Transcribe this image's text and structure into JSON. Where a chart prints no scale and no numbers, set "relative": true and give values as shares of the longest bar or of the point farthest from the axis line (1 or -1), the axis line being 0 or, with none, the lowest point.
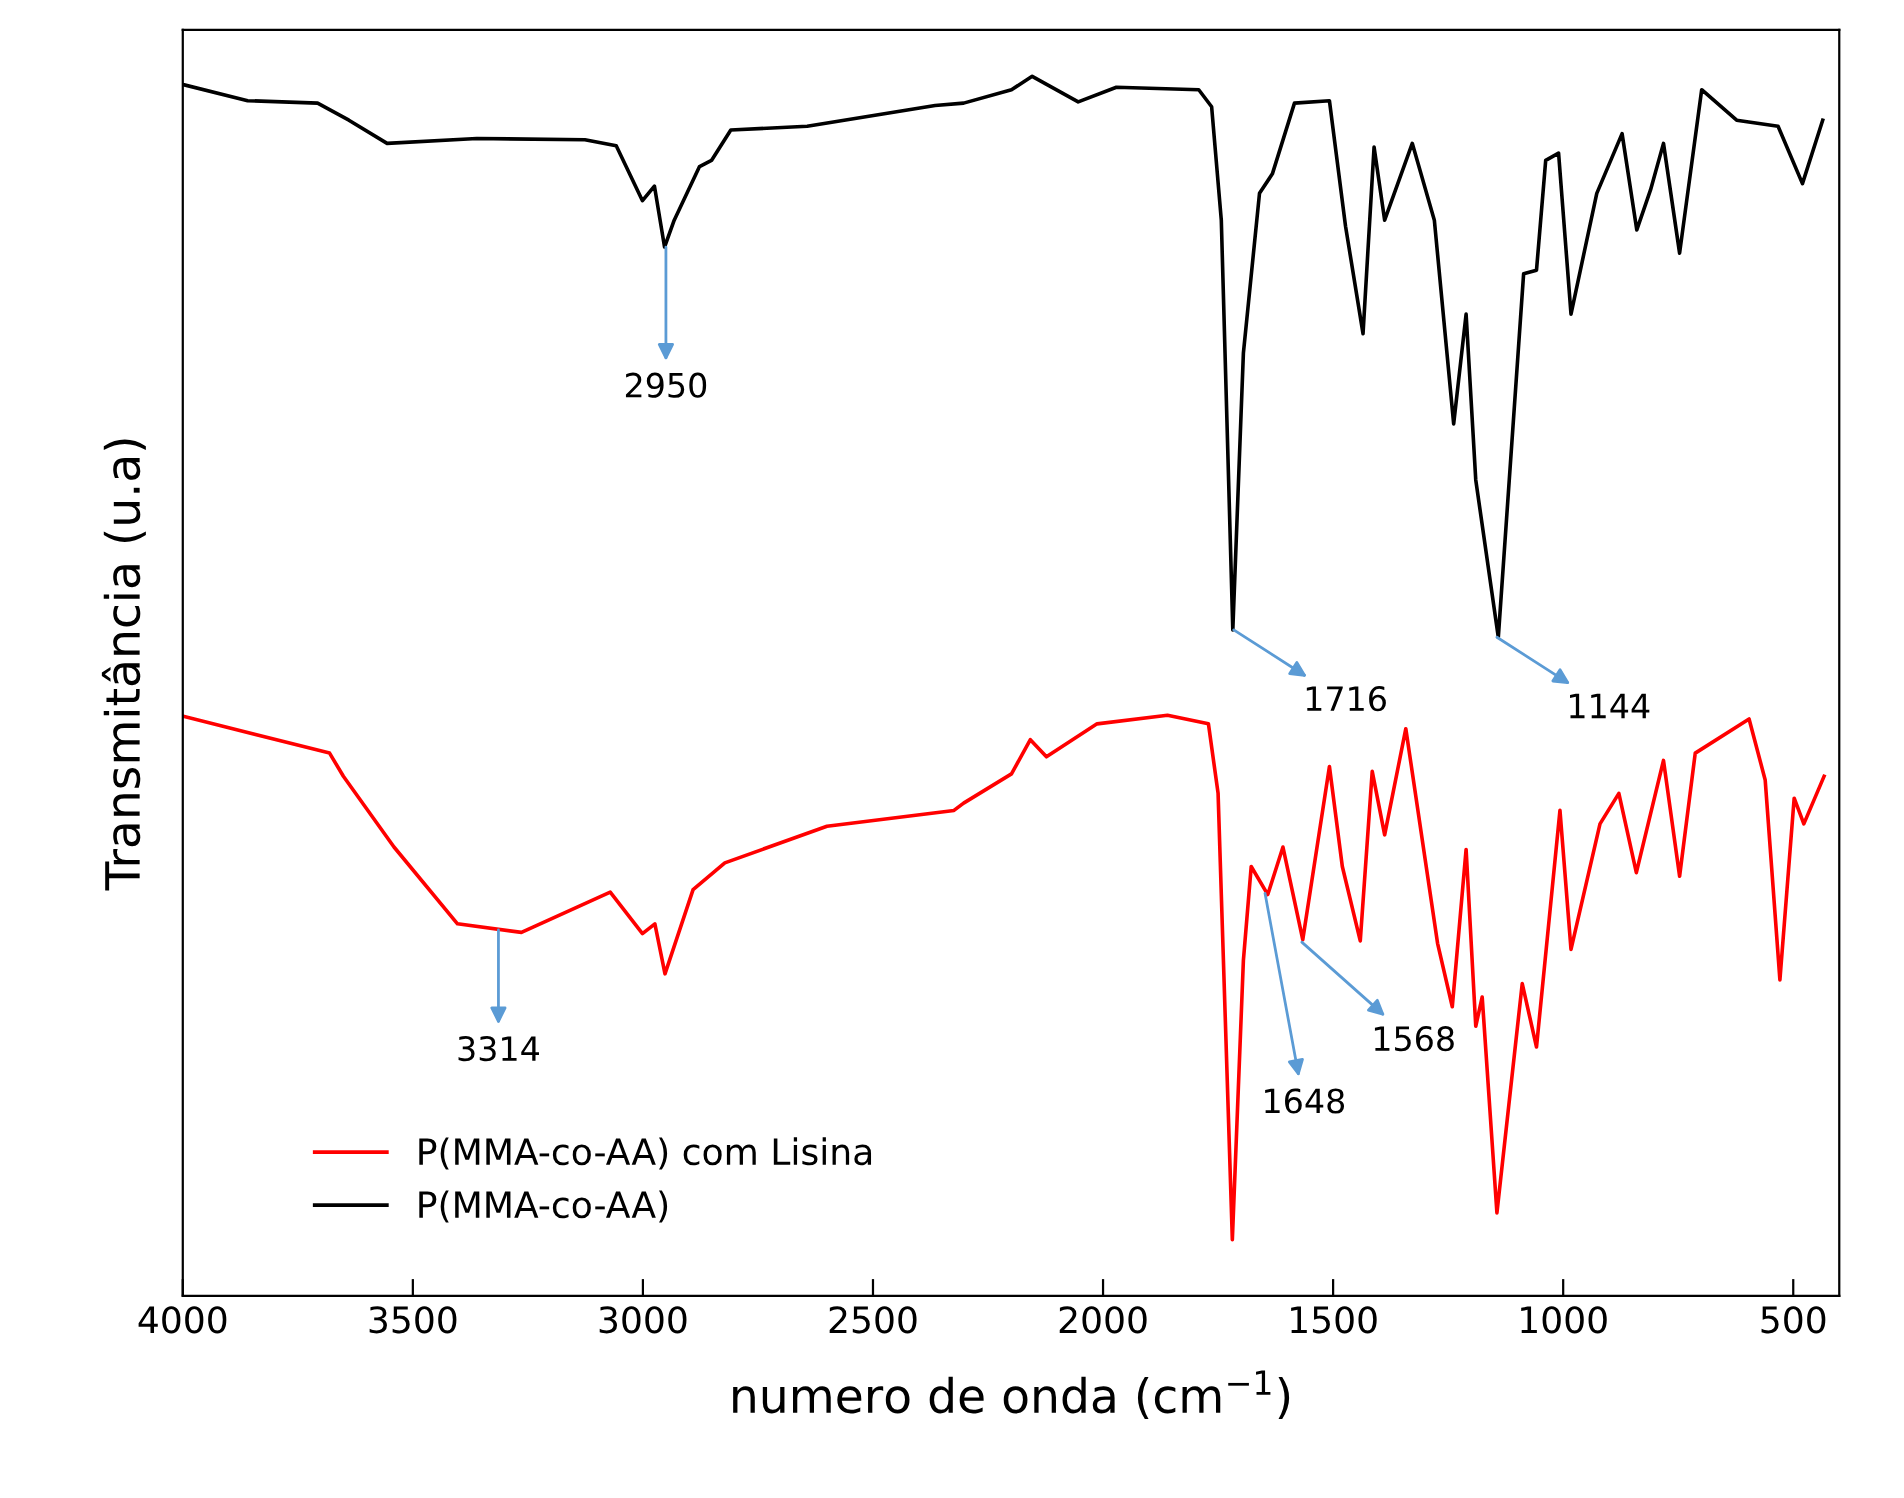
{
  "chart_data": {
    "type": "line",
    "relative": true,
    "xlabel": "numero de onda (cm$^{−1}$)",
    "ylabel": "Transmitância (u.a)",
    "xlim": [
      4000,
      400
    ],
    "xticks": [
      4000,
      3500,
      3000,
      2500,
      2000,
      1500,
      1000,
      500
    ],
    "grid": false,
    "legend": "bottom left",
    "series": [
      {
        "name": "P(MMA-co-AA) com Lisina",
        "color": "#ff0000",
        "x": [
          3997,
          3681,
          3651,
          3541,
          3403,
          3264,
          3071,
          3001,
          2974,
          2952,
          2891,
          2822,
          2600,
          2324,
          2303,
          2199,
          2158,
          2123,
          2013,
          1860,
          1771,
          1750,
          1719,
          1695,
          1678,
          1642,
          1609,
          1566,
          1508,
          1480,
          1441,
          1415,
          1388,
          1342,
          1273,
          1241,
          1211,
          1190,
          1176,
          1144,
          1089,
          1058,
          1007,
          983,
          920,
          879,
          841,
          782,
          747,
          713,
          596,
          561,
          529,
          498,
          477,
          433
        ],
        "values": [
          0.475,
          0.445,
          0.426,
          0.368,
          0.305,
          0.298,
          0.331,
          0.297,
          0.305,
          0.264,
          0.333,
          0.355,
          0.385,
          0.398,
          0.404,
          0.428,
          0.456,
          0.442,
          0.469,
          0.476,
          0.469,
          0.412,
          0.046,
          0.275,
          0.352,
          0.329,
          0.368,
          0.292,
          0.434,
          0.352,
          0.291,
          0.43,
          0.378,
          0.465,
          0.289,
          0.237,
          0.366,
          0.221,
          0.245,
          0.068,
          0.256,
          0.204,
          0.398,
          0.284,
          0.387,
          0.412,
          0.347,
          0.439,
          0.344,
          0.445,
          0.473,
          0.423,
          0.259,
          0.408,
          0.387,
          0.426
        ]
      },
      {
        "name": "P(MMA-co-AA)",
        "color": "#000000",
        "x": [
          3997,
          3859,
          3707,
          3639,
          3556,
          3361,
          3126,
          3058,
          3001,
          2975,
          2953,
          2932,
          2877,
          2851,
          2809,
          2643,
          2365,
          2303,
          2199,
          2154,
          2054,
          1971,
          1792,
          1764,
          1743,
          1718,
          1695,
          1660,
          1632,
          1584,
          1508,
          1473,
          1435,
          1411,
          1388,
          1328,
          1280,
          1238,
          1211,
          1190,
          1141,
          1086,
          1058,
          1038,
          1010,
          983,
          927,
          872,
          840,
          810,
          782,
          747,
          699,
          623,
          533,
          480,
          436
        ],
        "values": [
          0.993,
          0.98,
          0.978,
          0.964,
          0.945,
          0.949,
          0.948,
          0.943,
          0.898,
          0.91,
          0.86,
          0.882,
          0.926,
          0.931,
          0.956,
          0.959,
          0.976,
          0.978,
          0.989,
          1.0,
          0.979,
          0.991,
          0.989,
          0.975,
          0.882,
          0.546,
          0.773,
          0.904,
          0.92,
          0.978,
          0.98,
          0.877,
          0.789,
          0.942,
          0.882,
          0.945,
          0.882,
          0.715,
          0.805,
          0.669,
          0.54,
          0.838,
          0.841,
          0.931,
          0.937,
          0.805,
          0.904,
          0.953,
          0.874,
          0.907,
          0.945,
          0.855,
          0.989,
          0.964,
          0.959,
          0.912,
          0.964
        ]
      }
    ],
    "annotations": [
      {
        "text": "2950",
        "x": 2950,
        "y": 0.86
      },
      {
        "text": "1716",
        "x": 1716,
        "y": 0.546
      },
      {
        "text": "1144",
        "x": 1144,
        "y": 0.54
      },
      {
        "text": "3314",
        "x": 3314,
        "y": 0.3
      },
      {
        "text": "1648",
        "x": 1648,
        "y": 0.33
      },
      {
        "text": "1568",
        "x": 1568,
        "y": 0.29
      }
    ]
  }
}
